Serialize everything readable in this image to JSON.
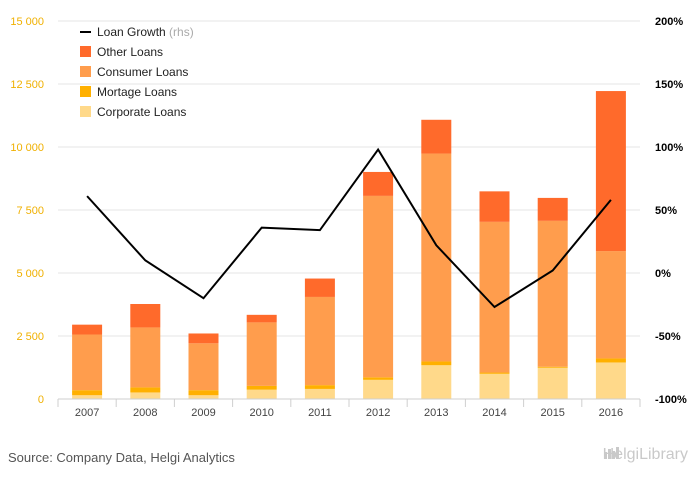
{
  "source": "Source: Company Data, Helgi Analytics",
  "brand": "HelgiLibrary",
  "legend": [
    {
      "label": "Loan Growth",
      "suffix": "(rhs)",
      "type": "line",
      "color": "#000000"
    },
    {
      "label": "Other Loans",
      "type": "box",
      "color": "#ff6a2b"
    },
    {
      "label": "Consumer Loans",
      "type": "box",
      "color": "#ff9d4d"
    },
    {
      "label": "Mortage Loans",
      "type": "box",
      "color": "#ffb000"
    },
    {
      "label": "Corporate Loans",
      "type": "box",
      "color": "#ffd98a"
    }
  ],
  "chart_data": {
    "type": "bar",
    "stacked": true,
    "categories": [
      "2007",
      "2008",
      "2009",
      "2010",
      "2011",
      "2012",
      "2013",
      "2014",
      "2015",
      "2016"
    ],
    "ylim": [
      0,
      15000
    ],
    "y_ticks": [
      "0",
      "2 500",
      "5 000",
      "7 500",
      "10 000",
      "12 500",
      "15 000"
    ],
    "y_tick_values": [
      0,
      2500,
      5000,
      7500,
      10000,
      12500,
      15000
    ],
    "y2lim": [
      -1.0,
      2.0
    ],
    "y2_ticks": [
      "-100%",
      "-50%",
      "0%",
      "50%",
      "100%",
      "150%",
      "200%"
    ],
    "y2_tick_values": [
      -1.0,
      -0.5,
      0,
      0.5,
      1.0,
      1.5,
      2.0
    ],
    "grid": true,
    "legend_position": "top-left",
    "series": [
      {
        "name": "Corporate Loans",
        "color": "#ffd98a",
        "values": [
          150,
          260,
          150,
          370,
          400,
          760,
          1340,
          1000,
          1240,
          1450
        ]
      },
      {
        "name": "Mortage Loans",
        "color": "#ffb000",
        "values": [
          200,
          200,
          200,
          150,
          150,
          100,
          150,
          50,
          40,
          160
        ]
      },
      {
        "name": "Consumer Loans",
        "color": "#ff9d4d",
        "values": [
          2210,
          2380,
          1860,
          2520,
          3500,
          7200,
          8250,
          5980,
          5790,
          4260
        ]
      },
      {
        "name": "Other Loans",
        "color": "#ff6a2b",
        "values": [
          390,
          930,
          390,
          300,
          730,
          950,
          1340,
          1210,
          910,
          6350
        ]
      }
    ],
    "line_series": {
      "name": "Loan Growth",
      "axis": "right",
      "color": "#000000",
      "values": [
        0.61,
        0.1,
        -0.2,
        0.36,
        0.34,
        0.98,
        0.22,
        -0.27,
        0.02,
        0.58
      ]
    }
  }
}
